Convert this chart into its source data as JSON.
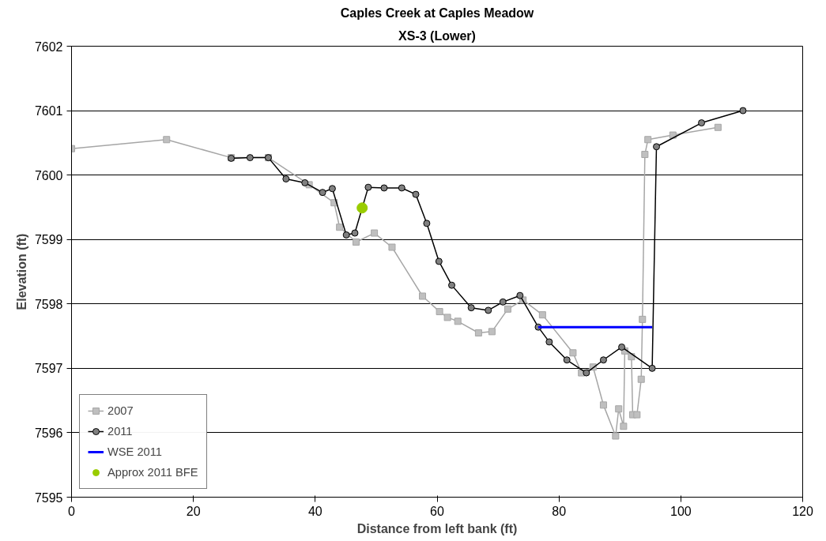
{
  "chart_data": {
    "type": "line",
    "title": "Caples Creek at Caples Meadow",
    "subtitle": "XS-3 (Lower)",
    "xlabel": "Distance from left bank (ft)",
    "ylabel": "Elevation (ft)",
    "xlim": [
      0,
      120
    ],
    "xticks": [
      0,
      20,
      40,
      60,
      80,
      100,
      120
    ],
    "ylim": [
      7595,
      7602
    ],
    "yticks": [
      7595,
      7596,
      7597,
      7598,
      7599,
      7600,
      7601,
      7602
    ],
    "grid": "y",
    "legend": "bottom left",
    "series": [
      {
        "name": "2007",
        "marker": "square",
        "color": "#a6a6a6",
        "x": [
          0,
          15.6,
          26.2,
          32.3,
          39.0,
          43.1,
          44.0,
          46.7,
          49.7,
          52.6,
          57.6,
          60.4,
          61.7,
          63.4,
          66.8,
          69.0,
          71.6,
          74.1,
          77.3,
          82.3,
          83.7,
          85.6,
          87.3,
          89.3,
          89.8,
          90.6,
          90.8,
          91.9,
          92.1,
          92.8,
          93.5,
          93.7,
          94.1,
          94.6,
          98.7,
          106.1
        ],
        "values": [
          7600.41,
          7600.55,
          7600.27,
          7600.27,
          7599.85,
          7599.57,
          7599.19,
          7598.96,
          7599.1,
          7598.88,
          7598.12,
          7597.88,
          7597.79,
          7597.73,
          7597.55,
          7597.57,
          7597.92,
          7598.06,
          7597.83,
          7597.24,
          7596.93,
          7597.02,
          7596.43,
          7595.95,
          7596.37,
          7596.1,
          7597.27,
          7597.18,
          7596.28,
          7596.28,
          7596.83,
          7597.76,
          7600.32,
          7600.55,
          7600.62,
          7600.74
        ]
      },
      {
        "name": "2011",
        "marker": "circle",
        "color": "#000000",
        "x": [
          26.2,
          29.3,
          32.3,
          35.2,
          38.3,
          41.2,
          42.8,
          45.1,
          46.5,
          48.7,
          51.3,
          54.2,
          56.5,
          58.3,
          60.3,
          62.4,
          65.6,
          68.4,
          70.8,
          73.6,
          76.6,
          78.4,
          81.3,
          84.5,
          87.3,
          90.3,
          95.3,
          96.0,
          103.4,
          110.2
        ],
        "values": [
          7600.26,
          7600.27,
          7600.27,
          7599.94,
          7599.88,
          7599.73,
          7599.79,
          7599.07,
          7599.1,
          7599.81,
          7599.8,
          7599.8,
          7599.7,
          7599.25,
          7598.66,
          7598.29,
          7597.94,
          7597.9,
          7598.03,
          7598.13,
          7597.64,
          7597.41,
          7597.13,
          7596.93,
          7597.13,
          7597.33,
          7597.0,
          7600.44,
          7600.81,
          7601.0
        ]
      },
      {
        "name": "WSE 2011",
        "marker": "none",
        "color": "#0000ff",
        "x": [
          76.6,
          95.3
        ],
        "values": [
          7597.64,
          7597.64
        ]
      },
      {
        "name": "Approx 2011 BFE",
        "type": "scatter",
        "marker": "circle",
        "color": "#99cc00",
        "x": [
          47.7
        ],
        "values": [
          7599.49
        ]
      }
    ]
  }
}
